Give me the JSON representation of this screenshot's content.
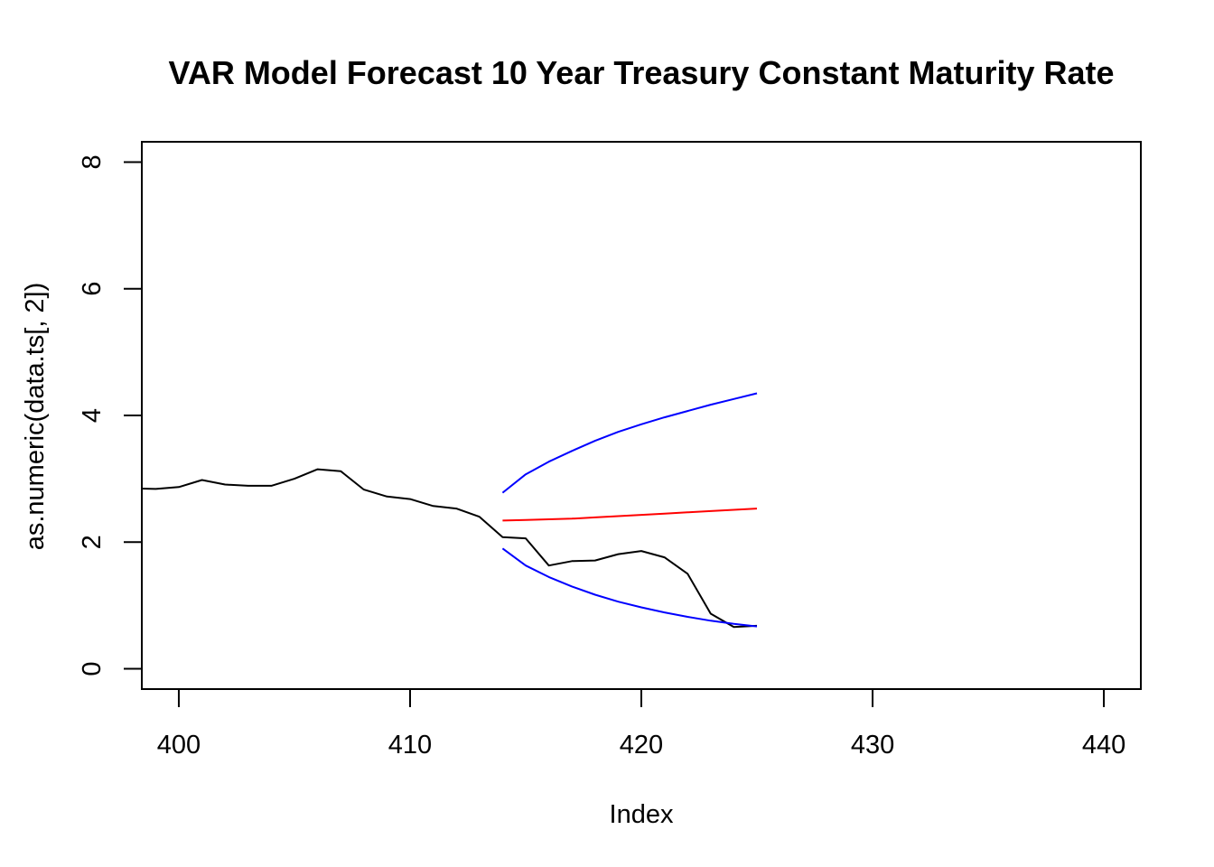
{
  "chart_data": {
    "type": "line",
    "title": "VAR Model Forecast 10 Year Treasury Constant Maturity Rate",
    "xlabel": "Index",
    "ylabel": "as.numeric(data.ts[, 2])",
    "xlim": [
      398.4,
      441.6
    ],
    "ylim": [
      -0.32,
      8.32
    ],
    "x_ticks": [
      400,
      410,
      420,
      430,
      440
    ],
    "y_ticks": [
      0,
      2,
      4,
      6,
      8
    ],
    "grid": false,
    "legend": "none",
    "series": [
      {
        "color": "#000000",
        "x": [
          398,
          399,
          400,
          401,
          402,
          403,
          404,
          405,
          406,
          407,
          408,
          409,
          410,
          411,
          412,
          413,
          414,
          415,
          416,
          417,
          418,
          419,
          420,
          421,
          422,
          423,
          424,
          425
        ],
        "values": [
          2.85,
          2.84,
          2.87,
          2.98,
          2.91,
          2.89,
          2.89,
          3.0,
          3.15,
          3.12,
          2.83,
          2.72,
          2.68,
          2.57,
          2.53,
          2.4,
          2.08,
          2.06,
          1.63,
          1.7,
          1.71,
          1.81,
          1.86,
          1.76,
          1.5,
          0.87,
          0.66,
          0.68
        ]
      },
      {
        "color": "#ff0000",
        "x": [
          414,
          415,
          416,
          417,
          418,
          419,
          420,
          421,
          422,
          423,
          424,
          425
        ],
        "values": [
          2.34,
          2.35,
          2.36,
          2.37,
          2.39,
          2.41,
          2.43,
          2.45,
          2.47,
          2.49,
          2.51,
          2.53
        ]
      },
      {
        "color": "#0000ff",
        "x": [
          414,
          415,
          416,
          417,
          418,
          419,
          420,
          421,
          422,
          423,
          424,
          425
        ],
        "values": [
          2.78,
          3.07,
          3.27,
          3.44,
          3.6,
          3.74,
          3.86,
          3.97,
          4.07,
          4.17,
          4.26,
          4.35
        ]
      },
      {
        "color": "#0000ff",
        "x": [
          414,
          415,
          416,
          417,
          418,
          419,
          420,
          421,
          422,
          423,
          424,
          425
        ],
        "values": [
          1.9,
          1.63,
          1.45,
          1.3,
          1.17,
          1.06,
          0.97,
          0.89,
          0.82,
          0.76,
          0.71,
          0.67
        ]
      }
    ]
  }
}
